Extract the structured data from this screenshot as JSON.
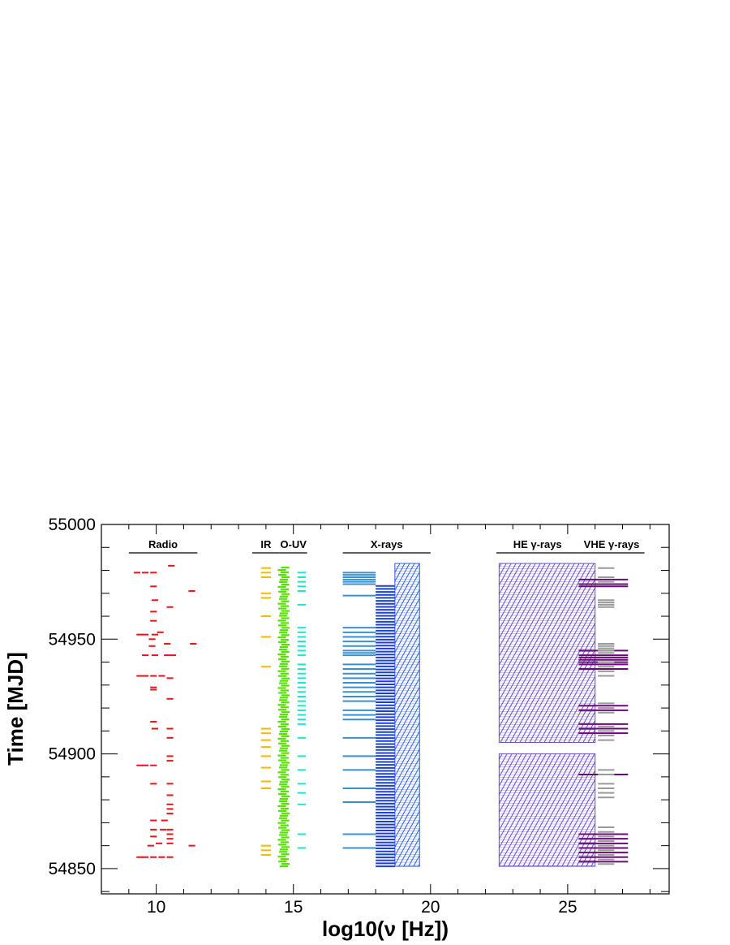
{
  "chart_data": {
    "type": "scatter",
    "xlabel": "log10(ν [Hz])",
    "ylabel": "Time [MJD]",
    "xlim": [
      8.0,
      28.7
    ],
    "ylim": [
      54839.0,
      55000.0
    ],
    "x_ticks": [
      10,
      15,
      20,
      25
    ],
    "y_ticks": [
      54850,
      54900,
      54950,
      55000
    ],
    "x_tick_labels": [
      "10",
      "15",
      "20",
      "25"
    ],
    "y_tick_labels": [
      "54850",
      "54900",
      "54950",
      "55000"
    ],
    "grid": false,
    "legend": "none",
    "bands": [
      {
        "label": "Radio",
        "x_range": [
          9.0,
          11.5
        ],
        "color": "#000000"
      },
      {
        "label": "IR",
        "x_range": [
          13.5,
          14.5
        ],
        "color": "#000000"
      },
      {
        "label": "O-UV",
        "x_range": [
          14.5,
          15.5
        ],
        "color": "#000000"
      },
      {
        "label": "X-rays",
        "x_range": [
          16.8,
          20.0
        ],
        "color": "#000000"
      },
      {
        "label": "HE γ-rays",
        "x_range": [
          22.4,
          25.4
        ],
        "color": "#000000"
      },
      {
        "label": "VHE γ-rays",
        "x_range": [
          25.4,
          27.8
        ],
        "color": "#000000"
      }
    ],
    "series": [
      {
        "band": "Radio",
        "color": "#e8141c",
        "style": "dash",
        "half_width": 0.12,
        "points": [
          [
            9.3,
            54979
          ],
          [
            9.6,
            54979
          ],
          [
            9.9,
            54979
          ],
          [
            10.55,
            54982
          ],
          [
            11.3,
            54971
          ],
          [
            9.9,
            54973
          ],
          [
            9.95,
            54967
          ],
          [
            10.5,
            54964
          ],
          [
            9.9,
            54962
          ],
          [
            9.9,
            54958
          ],
          [
            9.4,
            54952
          ],
          [
            9.6,
            54952
          ],
          [
            9.95,
            54952
          ],
          [
            10.15,
            54953
          ],
          [
            9.85,
            54950
          ],
          [
            10.4,
            54948
          ],
          [
            11.35,
            54948
          ],
          [
            9.85,
            54947
          ],
          [
            9.6,
            54943
          ],
          [
            9.95,
            54943
          ],
          [
            10.4,
            54943
          ],
          [
            10.6,
            54943
          ],
          [
            9.4,
            54934
          ],
          [
            9.6,
            54934
          ],
          [
            9.9,
            54934
          ],
          [
            10.2,
            54934
          ],
          [
            10.5,
            54933
          ],
          [
            9.9,
            54929
          ],
          [
            9.9,
            54928
          ],
          [
            10.5,
            54924
          ],
          [
            9.9,
            54914
          ],
          [
            9.95,
            54911
          ],
          [
            10.5,
            54911
          ],
          [
            10.5,
            54907
          ],
          [
            9.4,
            54895
          ],
          [
            9.6,
            54895
          ],
          [
            9.9,
            54895
          ],
          [
            10.5,
            54897
          ],
          [
            10.5,
            54899
          ],
          [
            9.9,
            54887
          ],
          [
            10.5,
            54887
          ],
          [
            10.5,
            54882
          ],
          [
            10.5,
            54878
          ],
          [
            10.5,
            54876
          ],
          [
            10.5,
            54874
          ],
          [
            9.9,
            54871
          ],
          [
            10.3,
            54871
          ],
          [
            9.9,
            54867
          ],
          [
            10.25,
            54867
          ],
          [
            10.5,
            54867
          ],
          [
            10.5,
            54865
          ],
          [
            9.9,
            54864
          ],
          [
            10.5,
            54863
          ],
          [
            10.1,
            54861
          ],
          [
            9.8,
            54860
          ],
          [
            10.5,
            54861
          ],
          [
            11.3,
            54860
          ],
          [
            9.4,
            54855
          ],
          [
            9.6,
            54855
          ],
          [
            9.9,
            54855
          ],
          [
            10.2,
            54855
          ],
          [
            10.5,
            54855
          ]
        ]
      },
      {
        "band": "IR",
        "color": "#f5b800",
        "style": "dash",
        "half_width": 0.18,
        "points": [
          [
            14.0,
            54981
          ],
          [
            14.0,
            54979
          ],
          [
            14.0,
            54977
          ],
          [
            14.0,
            54970
          ],
          [
            14.0,
            54968
          ],
          [
            14.0,
            54960
          ],
          [
            14.0,
            54951
          ],
          [
            14.0,
            54938
          ],
          [
            14.0,
            54911
          ],
          [
            14.0,
            54909
          ],
          [
            14.0,
            54906
          ],
          [
            14.0,
            54903
          ],
          [
            14.0,
            54899
          ],
          [
            14.0,
            54894
          ],
          [
            14.0,
            54888
          ],
          [
            14.0,
            54885
          ],
          [
            14.0,
            54860
          ],
          [
            14.0,
            54858
          ],
          [
            14.0,
            54856
          ]
        ]
      },
      {
        "band": "O-UV optical",
        "color": "#55e000",
        "style": "dense",
        "half_width": 0.15,
        "points": [],
        "time_range": [
          54851,
          54982
        ],
        "step": 1.05
      },
      {
        "band": "O-UV ultraviolet",
        "color": "#18e8c8",
        "style": "dash",
        "half_width": 0.15,
        "points": [
          [
            15.3,
            54979
          ],
          [
            15.3,
            54977
          ],
          [
            15.3,
            54975
          ],
          [
            15.3,
            54973
          ],
          [
            15.3,
            54971
          ],
          [
            15.3,
            54965
          ],
          [
            15.3,
            54955
          ],
          [
            15.3,
            54953
          ],
          [
            15.3,
            54951
          ],
          [
            15.3,
            54949
          ],
          [
            15.3,
            54947
          ],
          [
            15.3,
            54945
          ],
          [
            15.3,
            54943
          ],
          [
            15.3,
            54939
          ],
          [
            15.3,
            54937
          ],
          [
            15.3,
            54935
          ],
          [
            15.3,
            54933
          ],
          [
            15.3,
            54931
          ],
          [
            15.3,
            54929
          ],
          [
            15.3,
            54927
          ],
          [
            15.3,
            54925
          ],
          [
            15.3,
            54923
          ],
          [
            15.3,
            54921
          ],
          [
            15.3,
            54919
          ],
          [
            15.3,
            54917
          ],
          [
            15.3,
            54915
          ],
          [
            15.3,
            54913
          ],
          [
            15.3,
            54907
          ],
          [
            15.3,
            54899
          ],
          [
            15.3,
            54893
          ],
          [
            15.3,
            54887
          ],
          [
            15.3,
            54883
          ],
          [
            15.3,
            54878
          ],
          [
            15.3,
            54865
          ],
          [
            15.3,
            54859
          ]
        ]
      },
      {
        "band": "X-rays soft",
        "color": "#3a8fd0",
        "style": "line",
        "x_range": [
          16.8,
          18.0
        ],
        "times": [
          54979,
          54978,
          54977,
          54976,
          54975,
          54974,
          54969,
          54955,
          54953,
          54951,
          54949,
          54947,
          54945,
          54944,
          54943,
          54939,
          54937,
          54935,
          54933,
          54931,
          54929,
          54927,
          54925,
          54923,
          54919,
          54917,
          54915,
          54907,
          54899,
          54893,
          54885,
          54879,
          54865,
          54859
        ]
      },
      {
        "band": "X-rays hard",
        "color": "#1a3ed8",
        "style": "line",
        "x_range": [
          18.0,
          18.7
        ],
        "time_range": [
          54851,
          54974
        ],
        "step": 1.3
      },
      {
        "band": "X-rays very hard",
        "color": "#2a5ee8",
        "style": "hatch",
        "x_range": [
          18.7,
          19.6
        ],
        "time_range": [
          54851,
          54983
        ]
      },
      {
        "band": "HE γ-rays",
        "color": "#6a4ad0",
        "style": "hatch",
        "x_range": [
          22.5,
          26.0
        ],
        "time_blocks": [
          [
            54851,
            54900
          ],
          [
            54905,
            54983
          ]
        ]
      },
      {
        "band": "VHE γ-rays",
        "color": "#6a0a78",
        "style": "line",
        "x_range": [
          25.4,
          27.2
        ],
        "times": [
          54976,
          54974,
          54973,
          54945,
          54943,
          54942,
          54941,
          54940,
          54939,
          54937,
          54921,
          54919,
          54913,
          54911,
          54909,
          54891,
          54865,
          54863,
          54861,
          54859,
          54857,
          54855,
          54853
        ]
      },
      {
        "band": "VHE γ-rays (other)",
        "color": "#9a9a9a",
        "style": "line",
        "x_range": [
          26.1,
          26.7
        ],
        "times": [
          54981,
          54977,
          54975,
          54967,
          54966,
          54965,
          54964,
          54948,
          54947,
          54946,
          54945,
          54944,
          54940,
          54938,
          54936,
          54934,
          54922,
          54920,
          54918,
          54912,
          54910,
          54908,
          54906,
          54893,
          54891,
          54887,
          54885,
          54883,
          54881,
          54868,
          54866,
          54864,
          54862,
          54860,
          54858,
          54856,
          54854,
          54852
        ]
      }
    ]
  }
}
